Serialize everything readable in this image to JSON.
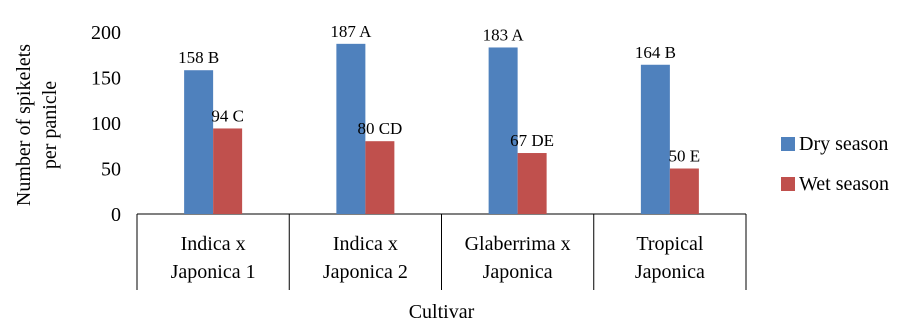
{
  "chart_data": {
    "type": "bar",
    "xlabel": "Cultivar",
    "ylabel": [
      "Number of spikelets",
      "per panicle"
    ],
    "ylim": [
      0,
      200
    ],
    "yticks": [
      0,
      50,
      100,
      150,
      200
    ],
    "grid": false,
    "legend_position": "right",
    "categories": [
      [
        "Indica x",
        "Japonica 1"
      ],
      [
        "Indica x",
        "Japonica 2"
      ],
      [
        "Glaberrima x",
        "Japonica"
      ],
      [
        "Tropical",
        "Japonica"
      ]
    ],
    "series": [
      {
        "name": "Dry season",
        "color": "#4F81BD",
        "values": [
          158,
          187,
          183,
          164
        ],
        "labels": [
          "158 B",
          "187 A",
          "183 A",
          "164 B"
        ]
      },
      {
        "name": "Wet season",
        "color": "#C0504D",
        "values": [
          94,
          80,
          67,
          50
        ],
        "labels": [
          "94 C",
          "80 CD",
          "67 DE",
          "50 E"
        ]
      }
    ]
  }
}
